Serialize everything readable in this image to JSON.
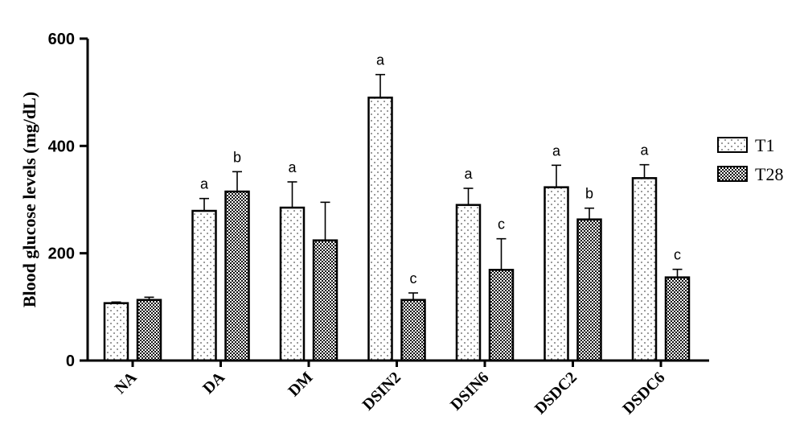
{
  "chart_data": {
    "type": "bar",
    "title": "",
    "xlabel": "",
    "ylabel": "Blood glucose levels (mg/dL)",
    "ylim": [
      0,
      600
    ],
    "yticks": [
      0,
      200,
      400,
      600
    ],
    "grid": false,
    "legend_position": "right",
    "categories": [
      "NA",
      "DA",
      "DM",
      "DSIN2",
      "DSIN6",
      "DSDC2",
      "DSDC6"
    ],
    "series": [
      {
        "name": "T1",
        "pattern": "dots",
        "values": [
          107,
          279,
          285,
          490,
          290,
          323,
          340
        ],
        "errors": [
          2,
          23,
          48,
          43,
          31,
          41,
          25
        ],
        "labels": [
          "",
          "a",
          "a",
          "a",
          "a",
          "a",
          "a"
        ]
      },
      {
        "name": "T28",
        "pattern": "checker",
        "values": [
          113,
          315,
          224,
          113,
          169,
          263,
          155
        ],
        "errors": [
          5,
          37,
          71,
          13,
          58,
          21,
          15
        ],
        "labels": [
          "",
          "b",
          "",
          "c",
          "c",
          "b",
          "c"
        ]
      }
    ]
  }
}
